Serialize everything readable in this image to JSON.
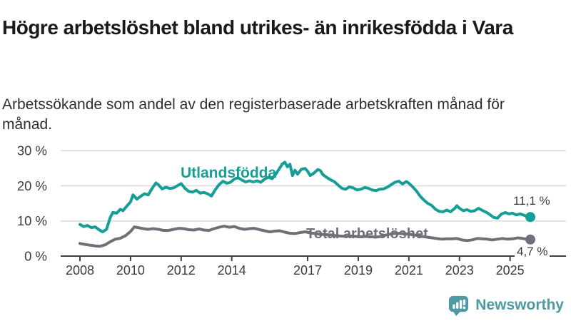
{
  "chart_data": {
    "type": "line",
    "title": "Högre arbetslöshet bland utrikes- än inrikesfödda i Vara",
    "subtitle": "Arbetssökande som andel av den registerbaserade arbetskraften månad för månad.",
    "unit": "%",
    "grid": true,
    "legend_position": "inline-labels",
    "x_axis": {
      "range": [
        2007.8,
        2026.2
      ],
      "ticks": [
        {
          "year": 2008,
          "label": "2008"
        },
        {
          "year": 2010,
          "label": "2010"
        },
        {
          "year": 2012,
          "label": "2012"
        },
        {
          "year": 2014,
          "label": "2014"
        },
        {
          "year": 2017,
          "label": "2017"
        },
        {
          "year": 2019,
          "label": "2019"
        },
        {
          "year": 2021,
          "label": "2021"
        },
        {
          "year": 2023,
          "label": "2023"
        },
        {
          "year": 2025,
          "label": "2025"
        }
      ]
    },
    "y_axis": {
      "range": [
        0,
        33
      ],
      "ticks": [
        {
          "value": 0,
          "label": "0 %"
        },
        {
          "value": 10,
          "label": "10 %"
        },
        {
          "value": 20,
          "label": "20 %"
        },
        {
          "value": 30,
          "label": "30 %"
        }
      ]
    },
    "style": {
      "axis_color": "#3f3f3f",
      "grid_color": "#dadada",
      "tick_label_color": "#3c3c3c"
    },
    "series": [
      {
        "id": "utlandsfodda",
        "name": "Utlandsfödda",
        "color": "#149e95",
        "end_label": "11,1 %",
        "end_value": 11.1,
        "points": [
          [
            2008.0,
            9.0
          ],
          [
            2008.15,
            8.4
          ],
          [
            2008.3,
            8.7
          ],
          [
            2008.45,
            8.1
          ],
          [
            2008.6,
            8.3
          ],
          [
            2008.75,
            7.5
          ],
          [
            2008.9,
            6.9
          ],
          [
            2009.05,
            7.6
          ],
          [
            2009.2,
            11.0
          ],
          [
            2009.3,
            12.4
          ],
          [
            2009.45,
            12.2
          ],
          [
            2009.6,
            13.3
          ],
          [
            2009.7,
            12.9
          ],
          [
            2009.85,
            14.2
          ],
          [
            2010.0,
            15.4
          ],
          [
            2010.1,
            17.4
          ],
          [
            2010.25,
            16.2
          ],
          [
            2010.4,
            17.0
          ],
          [
            2010.55,
            17.7
          ],
          [
            2010.7,
            17.4
          ],
          [
            2010.85,
            19.2
          ],
          [
            2011.0,
            20.8
          ],
          [
            2011.1,
            20.3
          ],
          [
            2011.25,
            19.1
          ],
          [
            2011.4,
            19.6
          ],
          [
            2011.55,
            19.2
          ],
          [
            2011.7,
            19.4
          ],
          [
            2011.85,
            20.0
          ],
          [
            2012.0,
            20.6
          ],
          [
            2012.15,
            19.3
          ],
          [
            2012.3,
            18.4
          ],
          [
            2012.45,
            18.2
          ],
          [
            2012.6,
            18.7
          ],
          [
            2012.75,
            17.9
          ],
          [
            2012.9,
            18.1
          ],
          [
            2013.05,
            17.7
          ],
          [
            2013.2,
            17.1
          ],
          [
            2013.35,
            18.9
          ],
          [
            2013.5,
            20.3
          ],
          [
            2013.65,
            21.3
          ],
          [
            2013.8,
            20.7
          ],
          [
            2013.95,
            21.0
          ],
          [
            2014.1,
            21.9
          ],
          [
            2014.25,
            22.3
          ],
          [
            2014.4,
            21.6
          ],
          [
            2014.55,
            21.1
          ],
          [
            2014.7,
            21.4
          ],
          [
            2014.85,
            21.1
          ],
          [
            2015.0,
            21.4
          ],
          [
            2015.15,
            21.0
          ],
          [
            2015.3,
            21.9
          ],
          [
            2015.45,
            22.4
          ],
          [
            2015.6,
            22.0
          ],
          [
            2015.75,
            23.4
          ],
          [
            2015.9,
            25.1
          ],
          [
            2016.0,
            26.2
          ],
          [
            2016.1,
            26.7
          ],
          [
            2016.2,
            25.4
          ],
          [
            2016.3,
            26.1
          ],
          [
            2016.4,
            22.9
          ],
          [
            2016.5,
            24.4
          ],
          [
            2016.6,
            23.3
          ],
          [
            2016.75,
            24.7
          ],
          [
            2016.9,
            24.9
          ],
          [
            2017.0,
            24.1
          ],
          [
            2017.1,
            22.9
          ],
          [
            2017.25,
            23.6
          ],
          [
            2017.4,
            24.6
          ],
          [
            2017.5,
            24.3
          ],
          [
            2017.6,
            23.2
          ],
          [
            2017.75,
            22.4
          ],
          [
            2017.9,
            21.7
          ],
          [
            2018.05,
            21.2
          ],
          [
            2018.2,
            20.2
          ],
          [
            2018.35,
            19.3
          ],
          [
            2018.5,
            19.0
          ],
          [
            2018.65,
            19.7
          ],
          [
            2018.8,
            19.4
          ],
          [
            2018.95,
            18.8
          ],
          [
            2019.1,
            19.0
          ],
          [
            2019.25,
            19.5
          ],
          [
            2019.4,
            19.3
          ],
          [
            2019.55,
            18.8
          ],
          [
            2019.7,
            18.6
          ],
          [
            2019.85,
            19.0
          ],
          [
            2020.0,
            19.1
          ],
          [
            2020.15,
            19.6
          ],
          [
            2020.3,
            20.3
          ],
          [
            2020.45,
            21.0
          ],
          [
            2020.6,
            21.3
          ],
          [
            2020.75,
            20.5
          ],
          [
            2020.9,
            21.2
          ],
          [
            2021.0,
            20.7
          ],
          [
            2021.15,
            19.7
          ],
          [
            2021.3,
            18.5
          ],
          [
            2021.45,
            17.0
          ],
          [
            2021.6,
            15.9
          ],
          [
            2021.75,
            15.0
          ],
          [
            2021.9,
            14.4
          ],
          [
            2022.05,
            13.3
          ],
          [
            2022.2,
            12.7
          ],
          [
            2022.35,
            12.6
          ],
          [
            2022.5,
            13.1
          ],
          [
            2022.65,
            12.6
          ],
          [
            2022.8,
            13.5
          ],
          [
            2022.9,
            14.3
          ],
          [
            2023.0,
            13.6
          ],
          [
            2023.15,
            12.9
          ],
          [
            2023.3,
            13.2
          ],
          [
            2023.45,
            12.7
          ],
          [
            2023.6,
            12.9
          ],
          [
            2023.75,
            13.6
          ],
          [
            2023.9,
            13.0
          ],
          [
            2024.05,
            12.5
          ],
          [
            2024.2,
            11.8
          ],
          [
            2024.35,
            11.0
          ],
          [
            2024.5,
            10.8
          ],
          [
            2024.65,
            11.9
          ],
          [
            2024.8,
            12.4
          ],
          [
            2024.95,
            12.0
          ],
          [
            2025.1,
            12.2
          ],
          [
            2025.25,
            11.7
          ],
          [
            2025.4,
            12.0
          ],
          [
            2025.55,
            11.6
          ],
          [
            2025.7,
            11.3
          ],
          [
            2025.8,
            11.1
          ]
        ]
      },
      {
        "id": "total-arbetsloshet",
        "name": "Total arbetslöshet",
        "color": "#6f6f78",
        "end_label": "4,7 %",
        "end_value": 4.7,
        "points": [
          [
            2008.0,
            3.6
          ],
          [
            2008.2,
            3.3
          ],
          [
            2008.4,
            3.1
          ],
          [
            2008.6,
            2.9
          ],
          [
            2008.8,
            2.8
          ],
          [
            2009.0,
            3.2
          ],
          [
            2009.2,
            4.1
          ],
          [
            2009.4,
            4.8
          ],
          [
            2009.6,
            5.1
          ],
          [
            2009.8,
            5.8
          ],
          [
            2010.0,
            7.0
          ],
          [
            2010.15,
            8.3
          ],
          [
            2010.3,
            8.1
          ],
          [
            2010.5,
            7.8
          ],
          [
            2010.7,
            7.6
          ],
          [
            2010.9,
            7.8
          ],
          [
            2011.1,
            7.6
          ],
          [
            2011.3,
            7.3
          ],
          [
            2011.5,
            7.3
          ],
          [
            2011.7,
            7.6
          ],
          [
            2011.9,
            7.9
          ],
          [
            2012.1,
            7.8
          ],
          [
            2012.3,
            7.5
          ],
          [
            2012.5,
            7.4
          ],
          [
            2012.7,
            7.7
          ],
          [
            2012.9,
            7.4
          ],
          [
            2013.1,
            7.3
          ],
          [
            2013.3,
            7.8
          ],
          [
            2013.5,
            8.2
          ],
          [
            2013.7,
            8.5
          ],
          [
            2013.9,
            8.2
          ],
          [
            2014.1,
            8.4
          ],
          [
            2014.3,
            7.9
          ],
          [
            2014.5,
            7.6
          ],
          [
            2014.7,
            7.8
          ],
          [
            2014.9,
            7.9
          ],
          [
            2015.1,
            7.5
          ],
          [
            2015.3,
            7.2
          ],
          [
            2015.5,
            6.9
          ],
          [
            2015.7,
            7.1
          ],
          [
            2015.9,
            7.2
          ],
          [
            2016.1,
            6.8
          ],
          [
            2016.3,
            6.5
          ],
          [
            2016.5,
            6.4
          ],
          [
            2016.7,
            6.7
          ],
          [
            2016.9,
            6.9
          ],
          [
            2017.1,
            6.6
          ],
          [
            2017.3,
            6.4
          ],
          [
            2017.5,
            6.2
          ],
          [
            2017.7,
            6.1
          ],
          [
            2017.9,
            6.0
          ],
          [
            2018.1,
            5.8
          ],
          [
            2018.3,
            5.7
          ],
          [
            2018.5,
            5.6
          ],
          [
            2018.7,
            5.7
          ],
          [
            2018.9,
            5.6
          ],
          [
            2019.1,
            5.5
          ],
          [
            2019.3,
            5.6
          ],
          [
            2019.5,
            5.5
          ],
          [
            2019.7,
            5.4
          ],
          [
            2019.9,
            5.6
          ],
          [
            2020.1,
            6.0
          ],
          [
            2020.3,
            6.3
          ],
          [
            2020.5,
            6.5
          ],
          [
            2020.7,
            6.4
          ],
          [
            2020.9,
            6.3
          ],
          [
            2021.1,
            6.1
          ],
          [
            2021.3,
            5.9
          ],
          [
            2021.5,
            5.6
          ],
          [
            2021.7,
            5.4
          ],
          [
            2021.9,
            5.2
          ],
          [
            2022.1,
            5.0
          ],
          [
            2022.3,
            4.8
          ],
          [
            2022.5,
            4.9
          ],
          [
            2022.7,
            4.9
          ],
          [
            2022.9,
            5.0
          ],
          [
            2023.1,
            4.6
          ],
          [
            2023.3,
            4.4
          ],
          [
            2023.5,
            4.6
          ],
          [
            2023.7,
            5.0
          ],
          [
            2023.9,
            4.9
          ],
          [
            2024.1,
            4.8
          ],
          [
            2024.3,
            4.6
          ],
          [
            2024.5,
            4.8
          ],
          [
            2024.7,
            5.0
          ],
          [
            2024.9,
            4.8
          ],
          [
            2025.1,
            4.9
          ],
          [
            2025.3,
            5.2
          ],
          [
            2025.5,
            5.0
          ],
          [
            2025.65,
            4.8
          ],
          [
            2025.8,
            4.7
          ]
        ]
      }
    ]
  },
  "footer": {
    "brand": "Newsworthy",
    "brand_color": "#4e99a3",
    "logo_icon": "newsworthy-speech-bubble-chart-icon"
  }
}
